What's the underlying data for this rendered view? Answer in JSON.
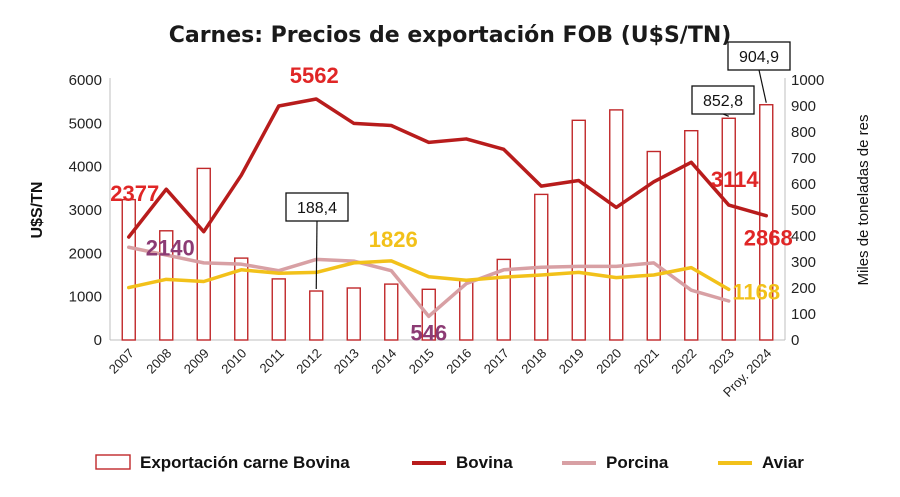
{
  "chart_data": {
    "type": "bar+line",
    "title": "Carnes: Precios de exportación FOB (U$S/TN)",
    "ylabel": "U$S/TN",
    "y2label": "Miles de toneladas de res",
    "ylim": [
      0,
      6000
    ],
    "y2lim": [
      0,
      1000
    ],
    "yticks": [
      "0",
      "1000",
      "2000",
      "3000",
      "4000",
      "5000",
      "6000"
    ],
    "y2ticks": [
      "0",
      "100",
      "200",
      "300",
      "400",
      "500",
      "600",
      "700",
      "800",
      "900",
      "1000"
    ],
    "categories": [
      "2007",
      "2008",
      "2009",
      "2010",
      "2011",
      "2012",
      "2013",
      "2014",
      "2015",
      "2016",
      "2017",
      "2018",
      "2019",
      "2020",
      "2021",
      "2022",
      "2023",
      "Proy. 2024"
    ],
    "colors": {
      "bar": "#c0282a",
      "bovina": "#b81c1c",
      "porcina": "#d8a0a4",
      "aviar": "#f2c11a",
      "porcina_label": "#8c3b74",
      "axis": "#bfbfbf"
    },
    "bars": {
      "name": "Exportación carne Bovina",
      "values": [
        540,
        420,
        660,
        315,
        235,
        188.4,
        200,
        215,
        195,
        230,
        310,
        560,
        845,
        885,
        725,
        805,
        852.8,
        904.9
      ]
    },
    "series": [
      {
        "name": "Bovina",
        "values": [
          2377,
          3480,
          2500,
          3800,
          5400,
          5562,
          5000,
          4950,
          4560,
          4640,
          4400,
          3550,
          3680,
          3060,
          3650,
          4100,
          3114,
          2868
        ]
      },
      {
        "name": "Porcina",
        "values": [
          2140,
          1960,
          1780,
          1750,
          1600,
          1860,
          1820,
          1600,
          546,
          1300,
          1620,
          1680,
          1700,
          1700,
          1780,
          1150,
          900,
          null
        ]
      },
      {
        "name": "Aviar",
        "values": [
          1210,
          1400,
          1350,
          1620,
          1540,
          1560,
          1780,
          1826,
          1460,
          1380,
          1450,
          1500,
          1560,
          1440,
          1500,
          1670,
          1168,
          null
        ]
      }
    ],
    "annotations": {
      "bovina_2007": "2377",
      "bovina_max": "5562",
      "bovina_2023": "3114",
      "bovina_2024": "2868",
      "porcina_2007": "2140",
      "porcina_min": "546",
      "aviar_max": "1826",
      "aviar_2023": "1168",
      "bar_2012": "188,4",
      "bar_2023": "852,8",
      "bar_2024": "904,9"
    },
    "legend": [
      "Exportación carne Bovina",
      "Bovina",
      "Porcina",
      "Aviar"
    ],
    "legend_position": "bottom"
  }
}
